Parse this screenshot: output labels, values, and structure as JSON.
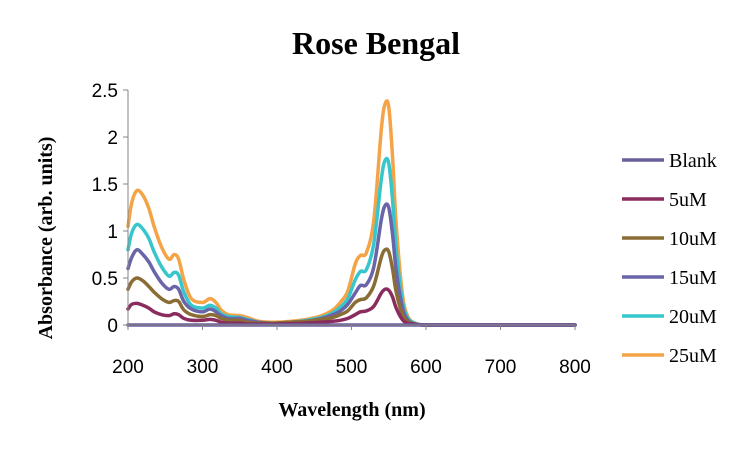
{
  "chart_data": {
    "type": "line",
    "title": "Rose Bengal",
    "xlabel": "Wavelength (nm)",
    "ylabel": "Absorbance (arb. units)",
    "xlim": [
      200,
      800
    ],
    "ylim": [
      0,
      2.5
    ],
    "xticks": [
      "200",
      "300",
      "400",
      "500",
      "600",
      "700",
      "800"
    ],
    "yticks": [
      "0",
      "0.5",
      "1",
      "1.5",
      "2",
      "2.5"
    ],
    "grid": false,
    "legend": "right",
    "x": [
      200,
      205,
      212,
      220,
      228,
      235,
      245,
      255,
      262,
      268,
      275,
      285,
      300,
      310,
      318,
      325,
      335,
      350,
      360,
      375,
      390,
      400,
      420,
      440,
      460,
      475,
      485,
      495,
      505,
      512,
      520,
      530,
      540,
      545,
      550,
      555,
      560,
      568,
      575,
      585,
      600,
      650,
      700,
      750,
      800
    ],
    "series": [
      {
        "name": "Blank",
        "color": "#6c5f9b",
        "values": [
          0,
          0,
          0,
          0,
          0,
          0,
          0,
          0,
          0,
          0,
          0,
          0,
          0,
          0,
          0,
          0,
          0,
          0,
          0,
          0,
          0,
          0,
          0,
          0,
          0,
          0,
          0,
          0,
          0,
          0,
          0,
          0,
          0,
          0,
          0,
          0,
          0,
          0,
          0,
          0,
          0,
          0,
          0,
          0,
          0
        ]
      },
      {
        "name": "5uM",
        "color": "#8b2c5e",
        "values": [
          0.17,
          0.22,
          0.23,
          0.21,
          0.18,
          0.14,
          0.11,
          0.1,
          0.12,
          0.11,
          0.07,
          0.05,
          0.05,
          0.06,
          0.05,
          0.03,
          0.02,
          0.02,
          0.01,
          0.01,
          0.01,
          0.01,
          0.015,
          0.02,
          0.03,
          0.04,
          0.05,
          0.07,
          0.11,
          0.14,
          0.15,
          0.2,
          0.34,
          0.38,
          0.37,
          0.3,
          0.18,
          0.06,
          0.02,
          0.01,
          0,
          0,
          0,
          0,
          0
        ]
      },
      {
        "name": "10uM",
        "color": "#8a6c35",
        "values": [
          0.38,
          0.46,
          0.5,
          0.47,
          0.41,
          0.35,
          0.28,
          0.24,
          0.26,
          0.25,
          0.16,
          0.11,
          0.09,
          0.11,
          0.1,
          0.07,
          0.05,
          0.05,
          0.03,
          0.02,
          0.02,
          0.02,
          0.03,
          0.04,
          0.06,
          0.08,
          0.11,
          0.15,
          0.24,
          0.27,
          0.29,
          0.42,
          0.72,
          0.8,
          0.78,
          0.6,
          0.35,
          0.12,
          0.04,
          0.01,
          0,
          0,
          0,
          0,
          0
        ]
      },
      {
        "name": "15uM",
        "color": "#6a64a8",
        "values": [
          0.6,
          0.72,
          0.8,
          0.75,
          0.67,
          0.57,
          0.45,
          0.38,
          0.41,
          0.38,
          0.25,
          0.17,
          0.14,
          0.17,
          0.14,
          0.1,
          0.07,
          0.07,
          0.05,
          0.03,
          0.02,
          0.02,
          0.03,
          0.04,
          0.07,
          0.11,
          0.15,
          0.22,
          0.34,
          0.42,
          0.43,
          0.62,
          1.12,
          1.27,
          1.25,
          0.97,
          0.58,
          0.2,
          0.06,
          0.01,
          0,
          0,
          0,
          0,
          0
        ]
      },
      {
        "name": "20uM",
        "color": "#37c6cc",
        "values": [
          0.8,
          0.98,
          1.07,
          1.02,
          0.92,
          0.78,
          0.62,
          0.52,
          0.56,
          0.53,
          0.35,
          0.21,
          0.18,
          0.21,
          0.18,
          0.12,
          0.09,
          0.08,
          0.06,
          0.03,
          0.02,
          0.02,
          0.03,
          0.05,
          0.08,
          0.13,
          0.19,
          0.28,
          0.48,
          0.57,
          0.59,
          0.87,
          1.55,
          1.75,
          1.72,
          1.34,
          0.8,
          0.27,
          0.08,
          0.02,
          0,
          0,
          0,
          0,
          0
        ]
      },
      {
        "name": "25uM",
        "color": "#f4a447",
        "values": [
          1.05,
          1.3,
          1.43,
          1.38,
          1.24,
          1.05,
          0.83,
          0.7,
          0.75,
          0.7,
          0.48,
          0.28,
          0.24,
          0.28,
          0.24,
          0.16,
          0.11,
          0.1,
          0.08,
          0.04,
          0.03,
          0.03,
          0.04,
          0.06,
          0.1,
          0.16,
          0.24,
          0.36,
          0.65,
          0.74,
          0.77,
          1.12,
          2.08,
          2.35,
          2.32,
          1.8,
          1.07,
          0.35,
          0.1,
          0.02,
          0,
          0,
          0,
          0,
          0
        ]
      }
    ]
  }
}
